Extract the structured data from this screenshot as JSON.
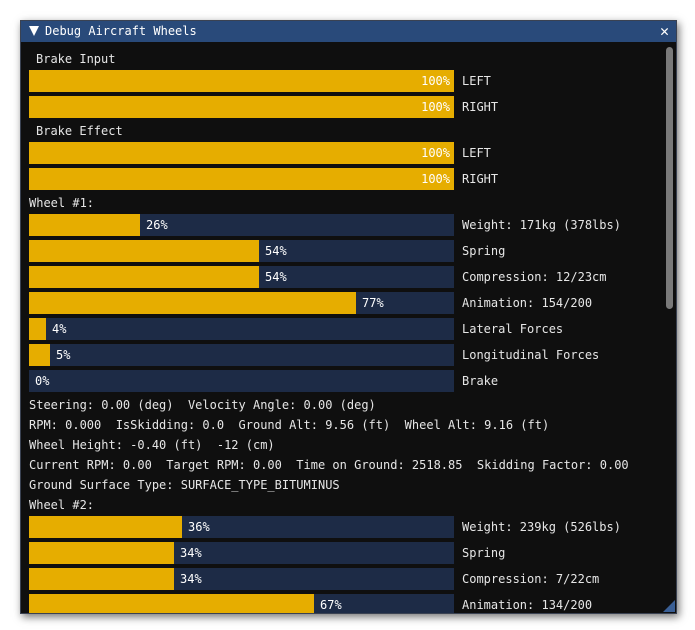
{
  "window": {
    "title": "Debug Aircraft Wheels",
    "close_glyph": "✕"
  },
  "colors": {
    "fill": "#e6ad00",
    "track": "#1d2b46",
    "titlebar": "#294a7a"
  },
  "brake_input": {
    "heading": "Brake Input",
    "bars": [
      {
        "value": 100,
        "pct": "100%",
        "label": "LEFT"
      },
      {
        "value": 100,
        "pct": "100%",
        "label": "RIGHT"
      }
    ]
  },
  "brake_effect": {
    "heading": "Brake Effect",
    "bars": [
      {
        "value": 100,
        "pct": "100%",
        "label": "LEFT"
      },
      {
        "value": 100,
        "pct": "100%",
        "label": "RIGHT"
      }
    ]
  },
  "wheel1": {
    "heading": "Wheel #1:",
    "bars": [
      {
        "value": 26,
        "pct": "26%",
        "label": "Weight: 171kg (378lbs)"
      },
      {
        "value": 54,
        "pct": "54%",
        "label": "Spring"
      },
      {
        "value": 54,
        "pct": "54%",
        "label": "Compression: 12/23cm"
      },
      {
        "value": 77,
        "pct": "77%",
        "label": "Animation: 154/200"
      },
      {
        "value": 4,
        "pct": "4%",
        "label": "Lateral Forces"
      },
      {
        "value": 5,
        "pct": "5%",
        "label": "Longitudinal Forces"
      },
      {
        "value": 0,
        "pct": "0%",
        "label": "Brake"
      }
    ],
    "info": [
      "Steering: 0.00 (deg)  Velocity Angle: 0.00 (deg)",
      "RPM: 0.000  IsSkidding: 0.0  Ground Alt: 9.56 (ft)  Wheel Alt: 9.16 (ft)",
      "Wheel Height: -0.40 (ft)  -12 (cm)",
      "Current RPM: 0.00  Target RPM: 0.00  Time on Ground: 2518.85  Skidding Factor: 0.00",
      "Ground Surface Type: SURFACE_TYPE_BITUMINUS"
    ]
  },
  "wheel2": {
    "heading": "Wheel #2:",
    "bars": [
      {
        "value": 36,
        "pct": "36%",
        "label": "Weight: 239kg (526lbs)"
      },
      {
        "value": 34,
        "pct": "34%",
        "label": "Spring"
      },
      {
        "value": 34,
        "pct": "34%",
        "label": "Compression: 7/22cm"
      },
      {
        "value": 67,
        "pct": "67%",
        "label": "Animation: 134/200"
      }
    ]
  }
}
